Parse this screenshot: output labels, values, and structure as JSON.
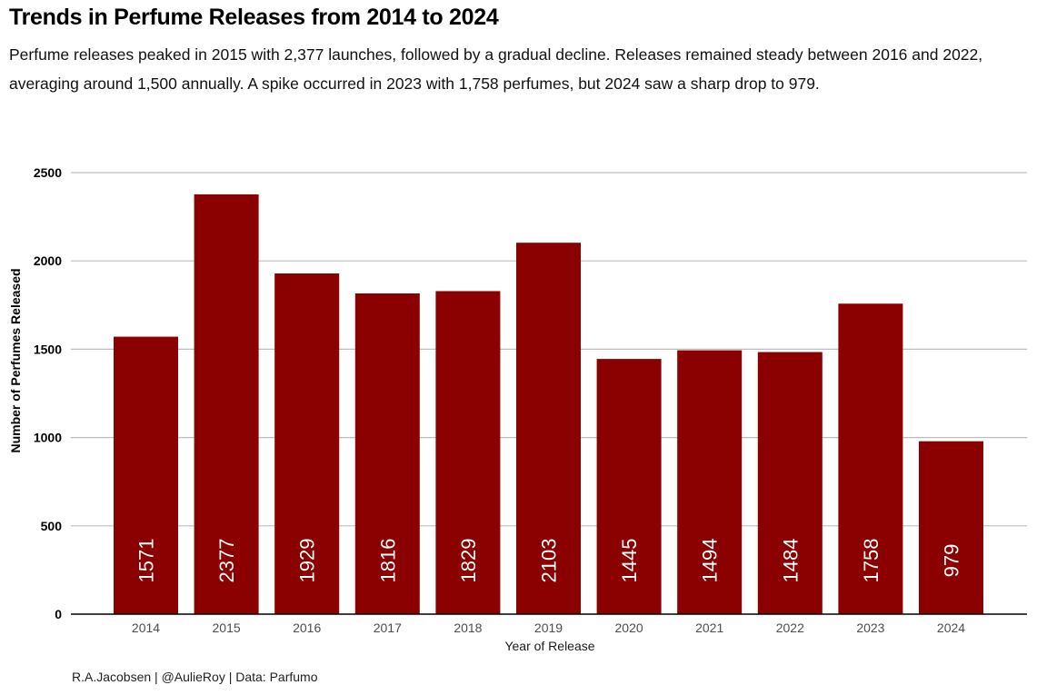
{
  "header": {
    "title": "Trends in Perfume Releases from 2014 to 2024",
    "subtitle": "Perfume releases peaked in 2015 with 2,377 launches, followed by a gradual decline. Releases remained steady between 2016 and 2022, averaging around 1,500 annually. A spike occurred in 2023 with 1,758 perfumes, but 2024 saw a sharp drop to 979."
  },
  "caption": "R.A.Jacobsen | @AulieRoy | Data: Parfumo",
  "colors": {
    "bar": "#8b0000",
    "grid": "#bdbdbd",
    "axis": "#000000"
  },
  "chart_data": {
    "type": "bar",
    "title": "Trends in Perfume Releases from 2014 to 2024",
    "xlabel": "Year of Release",
    "ylabel": "Number of Perfumes Released",
    "categories": [
      "2014",
      "2015",
      "2016",
      "2017",
      "2018",
      "2019",
      "2020",
      "2021",
      "2022",
      "2023",
      "2024"
    ],
    "values": [
      1571,
      2377,
      1929,
      1816,
      1829,
      2103,
      1445,
      1494,
      1484,
      1758,
      979
    ],
    "ylim": [
      0,
      2500
    ],
    "yticks": [
      0,
      500,
      1000,
      1500,
      2000,
      2500
    ],
    "grid": true,
    "legend": "none",
    "data_labels": "vertical, white, near bar base"
  }
}
